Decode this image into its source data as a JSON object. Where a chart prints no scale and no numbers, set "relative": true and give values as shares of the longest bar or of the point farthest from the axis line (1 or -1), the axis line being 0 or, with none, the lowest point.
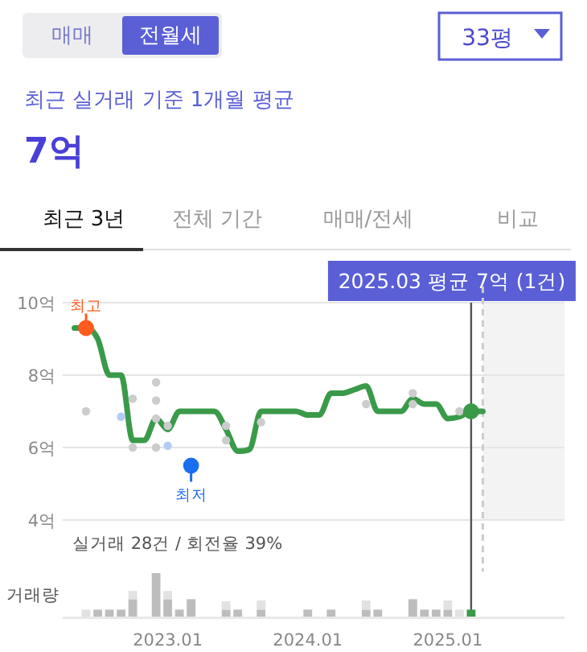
{
  "chart_data": [
    {
      "type": "line",
      "title": "7억",
      "subtitle": "최근 실거래 기준 1개월 평균",
      "annotations": [
        "매매",
        "전월세",
        "33평",
        "최근 3년",
        "전체 기간",
        "매매/전세",
        "비교",
        {
          "text": "최고",
          "x": "2022-06",
          "y": 9.3
        },
        {
          "text": "최저",
          "x": "2023-03",
          "y": 5.5
        },
        "실거래 28건 / 회전율 39%"
      ],
      "xlim": [
        "2022-04",
        "2025-11"
      ],
      "ylim": [
        4,
        10
      ],
      "yticks": [
        {
          "value": 4,
          "label": "4억"
        },
        {
          "value": 6,
          "label": "6억"
        },
        {
          "value": 8,
          "label": "8억"
        },
        {
          "value": 10,
          "label": "10억"
        }
      ],
      "tick_labels": "y",
      "grid": "y",
      "marker": "circle",
      "series": [
        {
          "type": "line",
          "marker": "none",
          "color": "#3a9a4a",
          "x": [
            "2022-05",
            "2022-06",
            "2022-07",
            "2022-08",
            "2022-09",
            "2022-10",
            "2022-11",
            "2022-12",
            "2023-01",
            "2023-02",
            "2023-03",
            "2023-04",
            "2023-05",
            "2023-06",
            "2023-07",
            "2023-08",
            "2023-09",
            "2023-10",
            "2023-11",
            "2023-12",
            "2024-01",
            "2024-02",
            "2024-03",
            "2024-04",
            "2024-05",
            "2024-06",
            "2024-07",
            "2024-08",
            "2024-09",
            "2024-10",
            "2024-11",
            "2024-12",
            "2025-01",
            "2025-02",
            "2025-03",
            "2025-04"
          ],
          "values": [
            9.3,
            9.3,
            9.0,
            8.0,
            8.0,
            6.2,
            6.2,
            6.8,
            6.5,
            7.0,
            7.0,
            7.0,
            7.0,
            6.5,
            5.9,
            5.95,
            7.0,
            7.0,
            7.0,
            7.0,
            6.9,
            6.9,
            7.5,
            7.5,
            7.6,
            7.7,
            7.0,
            7.0,
            7.0,
            7.35,
            7.2,
            7.2,
            6.8,
            6.85,
            7.0,
            7.0
          ]
        },
        {
          "type": "scatter",
          "color": "#cccccc",
          "x": [
            "2022-06",
            "2022-10",
            "2022-10",
            "2022-12",
            "2022-12",
            "2022-12",
            "2022-12",
            "2023-01",
            "2023-06",
            "2023-06",
            "2023-09",
            "2024-06",
            "2024-10",
            "2024-10",
            "2025-02"
          ],
          "values": [
            7.0,
            7.35,
            6.0,
            7.8,
            7.3,
            6.8,
            6.0,
            6.6,
            6.6,
            6.2,
            6.7,
            7.2,
            7.5,
            7.2,
            7.0
          ]
        },
        {
          "type": "scatter",
          "color": "#b3cdf2",
          "x": [
            "2022-09",
            "2023-01"
          ],
          "values": [
            6.85,
            6.05
          ]
        },
        {
          "type": "scatter",
          "color": "#ff5a1f",
          "x": [
            "2022-06"
          ],
          "values": [
            9.3
          ]
        },
        {
          "type": "scatter",
          "color": "#1a6ef0",
          "x": [
            "2023-03"
          ],
          "values": [
            5.5
          ]
        },
        {
          "type": "scatter",
          "color": "#3a9a4a",
          "x": [
            "2025-03"
          ],
          "values": [
            7.0
          ]
        }
      ],
      "ref_lines": [
        {
          "axis": "x",
          "value": "2025-03",
          "label": "2025.03 평균 7억 (1건)",
          "color": "#555555"
        },
        {
          "axis": "x",
          "value": "2025-04",
          "color": "#cccccc",
          "line_style": "dashed"
        }
      ],
      "bands": [
        {
          "axis": "x",
          "from": "2025-04",
          "to": "2025-11",
          "color": "#f3f3f3"
        }
      ]
    },
    {
      "type": "bar",
      "ylabel": "거래량",
      "relative": true,
      "stacked": true,
      "tick_labels": "x",
      "xlim": [
        "2022-04",
        "2025-11"
      ],
      "xticks": [
        {
          "value": "2023-01",
          "label": "2023.01"
        },
        {
          "value": "2024-01",
          "label": "2024.01"
        },
        {
          "value": "2025-01",
          "label": "2025.01"
        }
      ],
      "x": [
        "2022-06",
        "2022-07",
        "2022-08",
        "2022-09",
        "2022-10",
        "2022-12",
        "2023-01",
        "2023-02",
        "2023-03",
        "2023-06",
        "2023-07",
        "2023-09",
        "2024-01",
        "2024-03",
        "2024-06",
        "2024-07",
        "2024-10",
        "2024-11",
        "2024-12",
        "2025-01",
        "2025-02",
        "2025-03"
      ],
      "series": [
        {
          "color": "#bdbdbd",
          "values": [
            null,
            0.16,
            0.16,
            0.16,
            0.4,
            1,
            0.4,
            0.16,
            0.4,
            0.16,
            0.16,
            0.16,
            0.16,
            0.16,
            0.16,
            0.16,
            0.4,
            0.16,
            0.16,
            0.16,
            null,
            null
          ]
        },
        {
          "color": "#e2e2e2",
          "values": [
            0.16,
            null,
            null,
            null,
            0.19,
            null,
            0.19,
            null,
            null,
            0.19,
            null,
            0.21,
            null,
            null,
            0.21,
            null,
            null,
            null,
            null,
            0.21,
            0.16,
            null
          ]
        },
        {
          "color": "#3a9a4a",
          "values": [
            null,
            null,
            null,
            null,
            null,
            null,
            null,
            null,
            null,
            null,
            null,
            null,
            null,
            null,
            null,
            null,
            null,
            null,
            null,
            null,
            null,
            0.16
          ]
        }
      ]
    }
  ]
}
